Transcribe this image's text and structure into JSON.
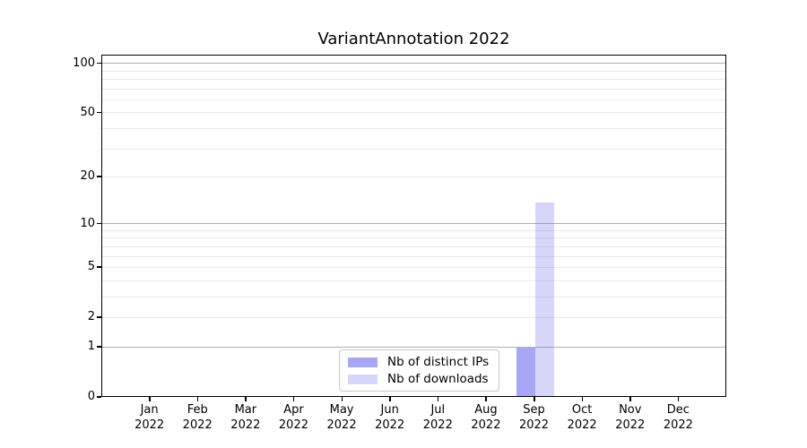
{
  "chart_data": {
    "type": "bar",
    "title": "VariantAnnotation 2022",
    "x_month_labels": [
      "Jan",
      "Feb",
      "Mar",
      "Apr",
      "May",
      "Jun",
      "Jul",
      "Aug",
      "Sep",
      "Oct",
      "Nov",
      "Dec"
    ],
    "x_year_label": "2022",
    "y_tick_labels": [
      0,
      1,
      2,
      5,
      10,
      20,
      50,
      100
    ],
    "y_minor_gridline_values": [
      2,
      3,
      4,
      5,
      6,
      7,
      8,
      9,
      20,
      30,
      40,
      50,
      60,
      70,
      80,
      90
    ],
    "y_major_gridline_values": [
      1,
      10,
      100
    ],
    "y_scale": "log1p",
    "y_axis_top_value": 113,
    "ylim": [
      0,
      113
    ],
    "categories": [
      "Jan 2022",
      "Feb 2022",
      "Mar 2022",
      "Apr 2022",
      "May 2022",
      "Jun 2022",
      "Jul 2022",
      "Aug 2022",
      "Sep 2022",
      "Oct 2022",
      "Nov 2022",
      "Dec 2022"
    ],
    "series": [
      {
        "name": "Nb of distinct IPs",
        "color": "rgba(120,120,240,0.65)",
        "values": [
          0,
          0,
          0,
          0,
          0,
          0,
          0,
          0,
          1,
          0,
          0,
          0
        ]
      },
      {
        "name": "Nb of downloads",
        "color": "rgba(120,120,240,0.30)",
        "values": [
          0,
          0,
          0,
          0,
          0,
          0,
          0,
          0,
          14,
          0,
          0,
          0
        ]
      }
    ],
    "legend": {
      "position": "lower center"
    },
    "colors": {
      "grid_major": "#b0b0b0",
      "grid_minor": "#e9e9e9",
      "spine": "#000000",
      "background": "#ffffff",
      "bar_base": "#7878f0"
    }
  }
}
